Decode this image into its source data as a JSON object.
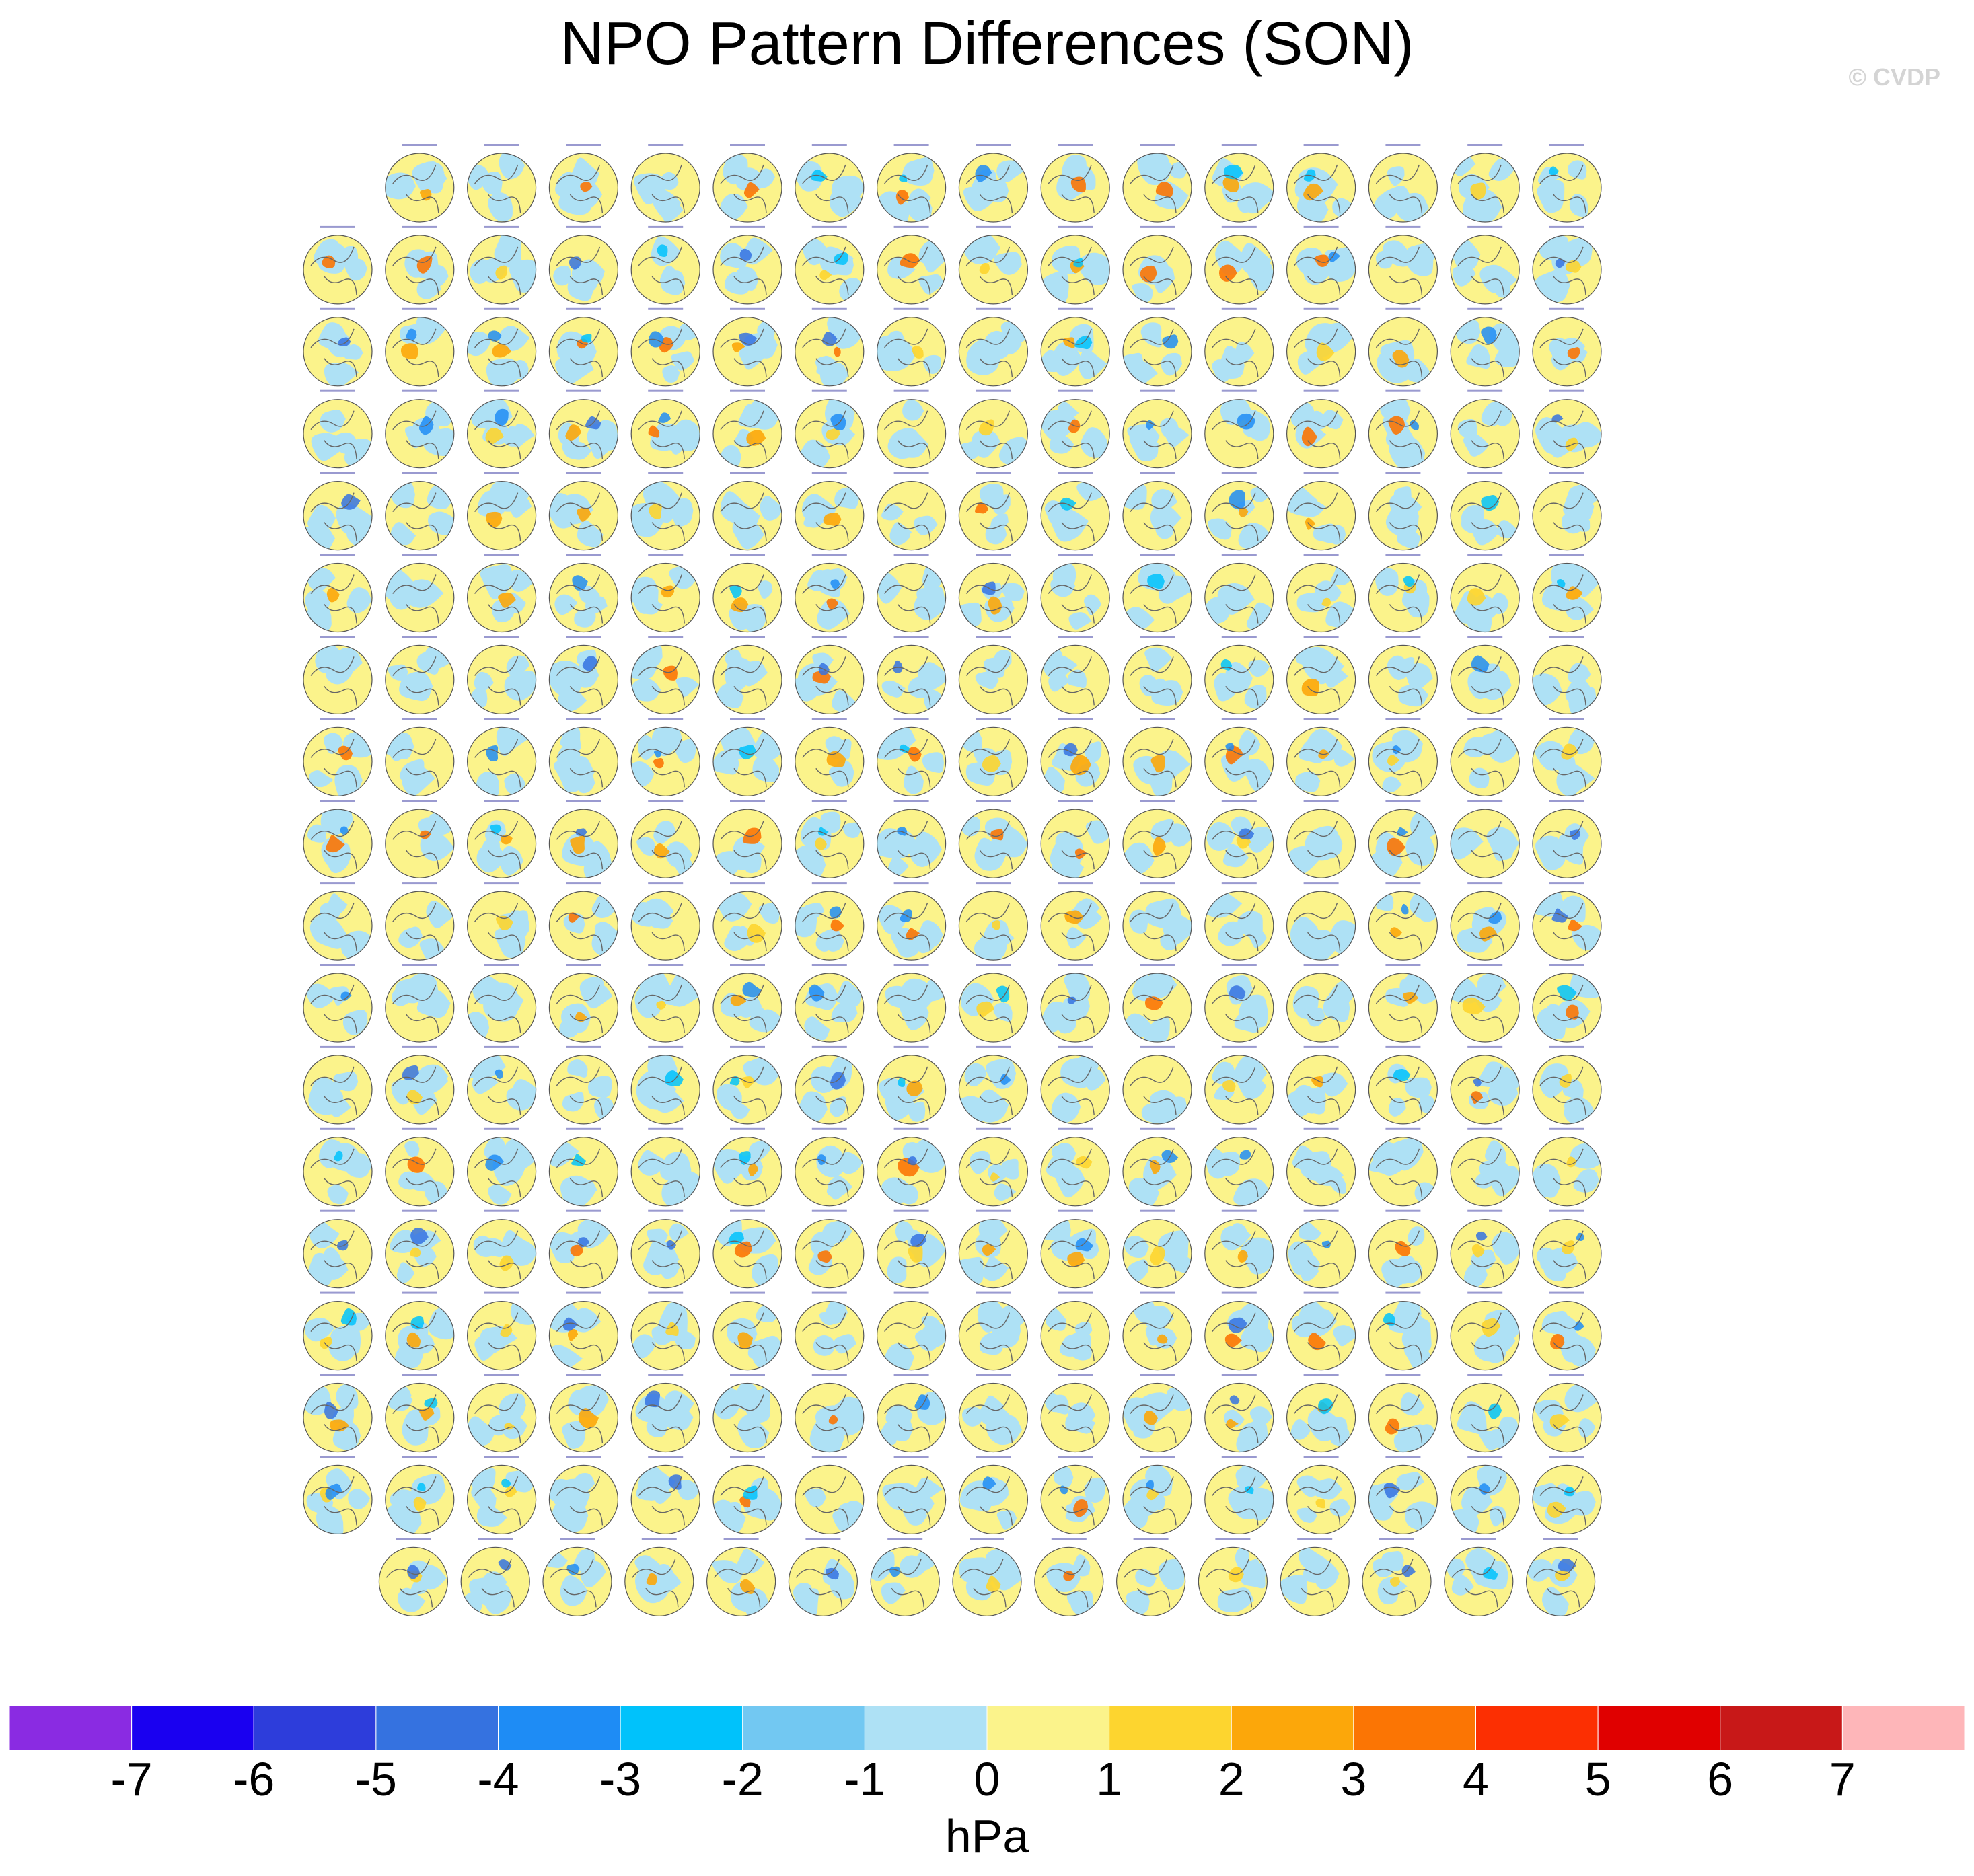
{
  "title": "NPO Pattern Differences (SON)",
  "watermark": "© CVDP",
  "units": "hPa",
  "chart_data": {
    "type": "heatmap",
    "title": "NPO Pattern Differences (SON)",
    "panel_layout": {
      "rows": 18,
      "panels_per_row": [
        15,
        16,
        16,
        16,
        16,
        16,
        16,
        16,
        16,
        16,
        16,
        16,
        16,
        16,
        16,
        16,
        16,
        15
      ],
      "first_row_offset_columns": 1,
      "last_row": "centered"
    },
    "projection": "north-polar",
    "colorbar": {
      "label": "hPa",
      "tick_labels": [
        "-7",
        "-6",
        "-5",
        "-4",
        "-3",
        "-2",
        "-1",
        "0",
        "1",
        "2",
        "3",
        "4",
        "5",
        "6",
        "7"
      ],
      "colors": [
        "#8a2be2",
        "#1a00f0",
        "#2d3ddb",
        "#3572e0",
        "#1e8cf5",
        "#00c2fb",
        "#72c8f2",
        "#aee1f5",
        "#fbf38b",
        "#fdd52f",
        "#fca70a",
        "#fb7504",
        "#fc2f02",
        "#e00000",
        "#c81818",
        "#feb6b9"
      ]
    }
  }
}
